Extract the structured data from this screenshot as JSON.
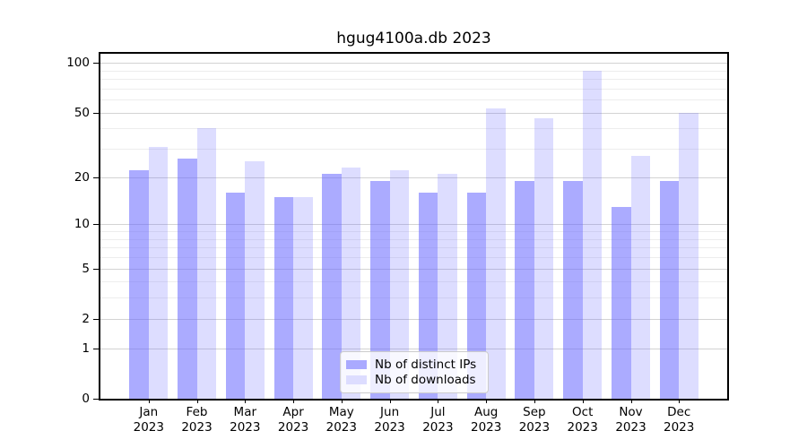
{
  "chart_data": {
    "type": "bar",
    "title": "hgug4100a.db 2023",
    "categories": [
      "Jan",
      "Feb",
      "Mar",
      "Apr",
      "May",
      "Jun",
      "Jul",
      "Aug",
      "Sep",
      "Oct",
      "Nov",
      "Dec"
    ],
    "year_label": "2023",
    "series": [
      {
        "name": "Nb of distinct IPs",
        "color": "rgba(102,102,255,0.55)",
        "color_hex_on_white": "#aaaaff",
        "values": [
          22,
          26,
          16,
          15,
          21,
          19,
          16,
          16,
          19,
          19,
          13,
          19
        ]
      },
      {
        "name": "Nb of downloads",
        "color": "rgba(102,102,255,0.22)",
        "color_hex_on_white": "#ddddff",
        "values": [
          31,
          40,
          25,
          15,
          23,
          22,
          21,
          53,
          46,
          90,
          27,
          50
        ]
      }
    ],
    "xlabel": "",
    "ylabel": "",
    "y_axis": {
      "scale": "log1p",
      "tick_labels": [
        "100",
        "50",
        "20",
        "10",
        "5",
        "2",
        "1",
        "0"
      ],
      "ticks": [
        100,
        50,
        20,
        10,
        5,
        2,
        1,
        0
      ],
      "minor_gridlines": [
        3,
        4,
        6,
        7,
        8,
        9,
        30,
        40,
        60,
        70,
        80,
        90
      ],
      "ylim": [
        0,
        112
      ]
    },
    "grid": true,
    "legend_position": "bottom-center"
  },
  "style": {
    "major_grid_color": "#d3d3d3",
    "minor_grid_color": "#ededed",
    "frame_color": "#000000",
    "background": "#ffffff"
  }
}
